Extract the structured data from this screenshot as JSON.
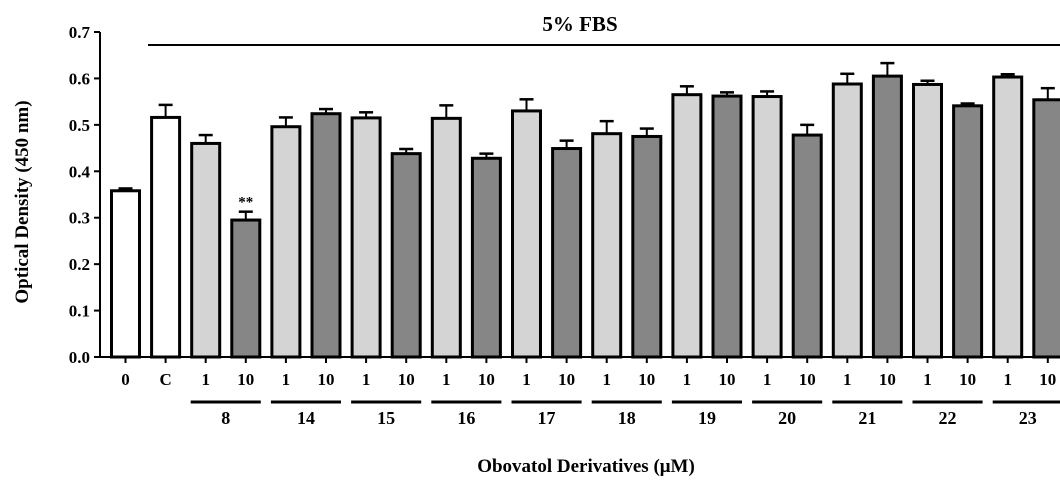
{
  "chart_data": {
    "type": "bar",
    "title": "5% FBS",
    "xlabel": "Obovatol Derivatives (μM)",
    "ylabel": "Optical Density (450 nm)",
    "ylim": [
      0,
      0.7
    ],
    "yticks": [
      "0.0",
      "0.1",
      "0.2",
      "0.3",
      "0.4",
      "0.5",
      "0.6",
      "0.7"
    ],
    "grid": false,
    "legend": "none",
    "colors": {
      "control": "#ffffff",
      "low_dose": "#d4d4d4",
      "high_dose": "#868686",
      "outline": "#000000"
    },
    "bars": [
      {
        "label": "0",
        "value": 0.358,
        "error": 0.005,
        "fill": "control"
      },
      {
        "label": "C",
        "value": 0.516,
        "error": 0.027,
        "fill": "control"
      },
      {
        "label": "1",
        "value": 0.46,
        "error": 0.018,
        "fill": "low_dose"
      },
      {
        "label": "10",
        "value": 0.295,
        "error": 0.018,
        "fill": "high_dose",
        "annotation": "**"
      },
      {
        "label": "1",
        "value": 0.496,
        "error": 0.02,
        "fill": "low_dose"
      },
      {
        "label": "10",
        "value": 0.524,
        "error": 0.01,
        "fill": "high_dose"
      },
      {
        "label": "1",
        "value": 0.515,
        "error": 0.012,
        "fill": "low_dose"
      },
      {
        "label": "10",
        "value": 0.438,
        "error": 0.01,
        "fill": "high_dose"
      },
      {
        "label": "1",
        "value": 0.514,
        "error": 0.028,
        "fill": "low_dose"
      },
      {
        "label": "10",
        "value": 0.428,
        "error": 0.01,
        "fill": "high_dose"
      },
      {
        "label": "1",
        "value": 0.53,
        "error": 0.025,
        "fill": "low_dose"
      },
      {
        "label": "10",
        "value": 0.449,
        "error": 0.017,
        "fill": "high_dose"
      },
      {
        "label": "1",
        "value": 0.481,
        "error": 0.027,
        "fill": "low_dose"
      },
      {
        "label": "10",
        "value": 0.475,
        "error": 0.017,
        "fill": "high_dose"
      },
      {
        "label": "1",
        "value": 0.565,
        "error": 0.018,
        "fill": "low_dose"
      },
      {
        "label": "10",
        "value": 0.562,
        "error": 0.008,
        "fill": "high_dose"
      },
      {
        "label": "1",
        "value": 0.561,
        "error": 0.011,
        "fill": "low_dose"
      },
      {
        "label": "10",
        "value": 0.478,
        "error": 0.022,
        "fill": "high_dose"
      },
      {
        "label": "1",
        "value": 0.588,
        "error": 0.022,
        "fill": "low_dose"
      },
      {
        "label": "10",
        "value": 0.605,
        "error": 0.028,
        "fill": "high_dose"
      },
      {
        "label": "1",
        "value": 0.587,
        "error": 0.008,
        "fill": "low_dose"
      },
      {
        "label": "10",
        "value": 0.541,
        "error": 0.005,
        "fill": "high_dose"
      },
      {
        "label": "1",
        "value": 0.603,
        "error": 0.006,
        "fill": "low_dose"
      },
      {
        "label": "10",
        "value": 0.554,
        "error": 0.025,
        "fill": "high_dose"
      }
    ],
    "groups": [
      {
        "label": "8",
        "bars": [
          2,
          3
        ]
      },
      {
        "label": "14",
        "bars": [
          4,
          5
        ]
      },
      {
        "label": "15",
        "bars": [
          6,
          7
        ]
      },
      {
        "label": "16",
        "bars": [
          8,
          9
        ]
      },
      {
        "label": "17",
        "bars": [
          10,
          11
        ]
      },
      {
        "label": "18",
        "bars": [
          12,
          13
        ]
      },
      {
        "label": "19",
        "bars": [
          14,
          15
        ]
      },
      {
        "label": "20",
        "bars": [
          16,
          17
        ]
      },
      {
        "label": "21",
        "bars": [
          18,
          19
        ]
      },
      {
        "label": "22",
        "bars": [
          20,
          21
        ]
      },
      {
        "label": "23",
        "bars": [
          22,
          23
        ]
      }
    ]
  }
}
